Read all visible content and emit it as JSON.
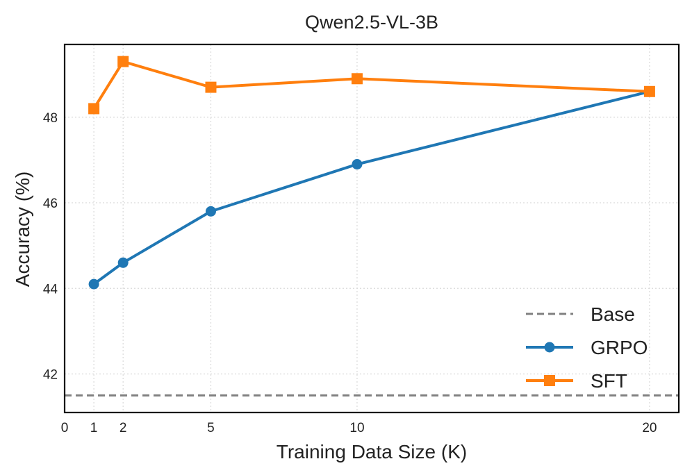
{
  "chart_data": {
    "type": "line",
    "title": "Qwen2.5-VL-3B",
    "xlabel": "Training Data Size (K)",
    "ylabel": "Accuracy (%)",
    "xlim": [
      0,
      21
    ],
    "ylim": [
      41.1,
      49.7
    ],
    "xticks": [
      0,
      1,
      2,
      5,
      10,
      20
    ],
    "yticks": [
      42,
      44,
      46,
      48
    ],
    "grid": true,
    "legend_position": "lower-right",
    "series": [
      {
        "name": "GRPO",
        "marker": "circle",
        "color": "#1f77b4",
        "x": [
          1,
          2,
          5,
          10,
          20
        ],
        "y": [
          44.1,
          44.6,
          45.8,
          46.9,
          48.6
        ]
      },
      {
        "name": "SFT",
        "marker": "square",
        "color": "#ff7f0e",
        "x": [
          1,
          2,
          5,
          10,
          20
        ],
        "y": [
          48.2,
          49.3,
          48.7,
          48.9,
          48.6
        ]
      }
    ],
    "reference_lines": [
      {
        "name": "Base",
        "y": 41.5,
        "style": "dashed",
        "color": "#808080"
      }
    ],
    "legend": [
      "Base",
      "GRPO",
      "SFT"
    ]
  }
}
